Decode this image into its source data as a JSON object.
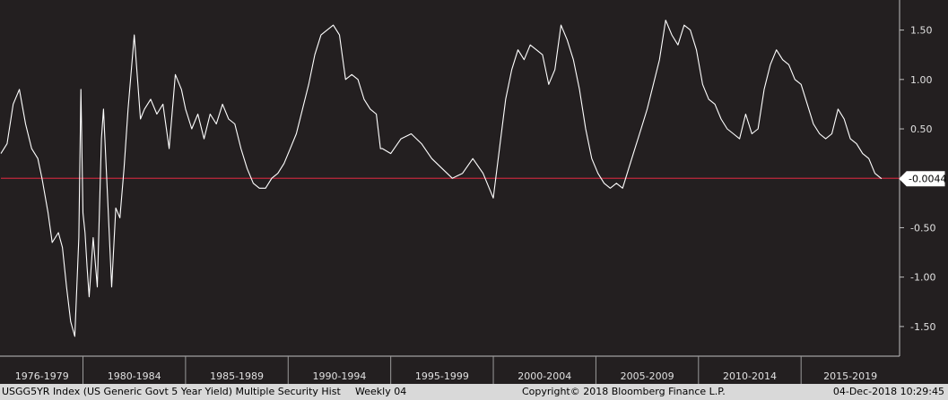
{
  "chart_data": {
    "type": "line",
    "title": "",
    "xlabel": "",
    "ylabel": "",
    "ylim": [
      -1.8,
      1.75
    ],
    "yticks": [
      "1.50",
      "1.00",
      "0.50",
      "-0.50",
      "-1.00",
      "-1.50"
    ],
    "ytick_values": [
      1.5,
      1.0,
      0.5,
      -0.5,
      -1.0,
      -1.5
    ],
    "xticks": [
      "1976-1979",
      "1980-1984",
      "1985-1989",
      "1990-1994",
      "1995-1999",
      "2000-2004",
      "2005-2009",
      "2010-2014",
      "2015-2019"
    ],
    "xrange": [
      1976.0,
      2019.8
    ],
    "reference_line": {
      "value": 0,
      "color": "#c0283d"
    },
    "last_value": {
      "value": -0.0044,
      "label": "-0.0044"
    },
    "grid": false,
    "line_color": "#ffffff",
    "background": "#231f20",
    "series": [
      {
        "x": [
          1976.0,
          1976.3,
          1976.6,
          1976.9,
          1977.2,
          1977.5,
          1977.8,
          1978.0,
          1978.3,
          1978.5,
          1978.8,
          1979.0,
          1979.2,
          1979.4,
          1979.6,
          1979.8,
          1979.9,
          1980.0,
          1980.1,
          1980.2,
          1980.3,
          1980.5,
          1980.7,
          1980.9,
          1981.0,
          1981.2,
          1981.4,
          1981.6,
          1981.8,
          1982.0,
          1982.2,
          1982.5,
          1982.8,
          1983.0,
          1983.3,
          1983.6,
          1983.9,
          1984.2,
          1984.5,
          1984.8,
          1985.0,
          1985.3,
          1985.6,
          1985.9,
          1986.2,
          1986.5,
          1986.8,
          1987.1,
          1987.4,
          1987.7,
          1988.0,
          1988.3,
          1988.6,
          1988.9,
          1989.2,
          1989.5,
          1989.8,
          1990.1,
          1990.4,
          1990.7,
          1991.0,
          1991.3,
          1991.6,
          1991.9,
          1992.2,
          1992.5,
          1992.8,
          1993.1,
          1993.4,
          1993.7,
          1994.0,
          1994.3,
          1994.5,
          1994.6,
          1995.0,
          1995.5,
          1996.0,
          1996.5,
          1997.0,
          1997.5,
          1998.0,
          1998.5,
          1999.0,
          1999.5,
          2000.0,
          2000.3,
          2000.6,
          2000.9,
          2001.2,
          2001.5,
          2001.8,
          2002.1,
          2002.4,
          2002.7,
          2003.0,
          2003.3,
          2003.6,
          2003.9,
          2004.2,
          2004.5,
          2004.8,
          2005.1,
          2005.4,
          2005.7,
          2006.0,
          2006.3,
          2006.6,
          2006.9,
          2007.2,
          2007.5,
          2007.8,
          2008.1,
          2008.4,
          2008.7,
          2009.0,
          2009.3,
          2009.6,
          2009.9,
          2010.2,
          2010.5,
          2010.8,
          2011.1,
          2011.4,
          2011.7,
          2012.0,
          2012.3,
          2012.6,
          2012.9,
          2013.2,
          2013.5,
          2013.8,
          2014.1,
          2014.4,
          2014.7,
          2015.0,
          2015.3,
          2015.6,
          2015.9,
          2016.2,
          2016.5,
          2016.8,
          2017.1,
          2017.4,
          2017.7,
          2018.0,
          2018.3,
          2018.6,
          2018.92
        ],
        "values": [
          0.25,
          0.35,
          0.75,
          0.9,
          0.55,
          0.3,
          0.2,
          0.0,
          -0.35,
          -0.65,
          -0.55,
          -0.7,
          -1.1,
          -1.45,
          -1.6,
          -0.6,
          0.9,
          -0.35,
          -0.55,
          -0.9,
          -1.2,
          -0.6,
          -1.1,
          0.4,
          0.7,
          -0.2,
          -1.1,
          -0.3,
          -0.4,
          0.1,
          0.7,
          1.45,
          0.6,
          0.7,
          0.8,
          0.65,
          0.75,
          0.3,
          1.05,
          0.9,
          0.7,
          0.5,
          0.65,
          0.4,
          0.65,
          0.55,
          0.75,
          0.6,
          0.55,
          0.3,
          0.1,
          -0.05,
          -0.1,
          -0.1,
          0.0,
          0.05,
          0.15,
          0.3,
          0.45,
          0.7,
          0.95,
          1.25,
          1.45,
          1.5,
          1.55,
          1.45,
          1.0,
          1.05,
          1.0,
          0.8,
          0.7,
          0.65,
          0.3,
          0.3,
          0.25,
          0.4,
          0.45,
          0.35,
          0.2,
          0.1,
          0.0,
          0.05,
          0.2,
          0.05,
          -0.2,
          0.3,
          0.8,
          1.1,
          1.3,
          1.2,
          1.35,
          1.3,
          1.25,
          0.95,
          1.1,
          1.55,
          1.4,
          1.2,
          0.9,
          0.5,
          0.2,
          0.05,
          -0.05,
          -0.1,
          -0.05,
          -0.1,
          0.1,
          0.3,
          0.5,
          0.7,
          0.95,
          1.2,
          1.6,
          1.45,
          1.35,
          1.55,
          1.5,
          1.3,
          0.95,
          0.8,
          0.75,
          0.6,
          0.5,
          0.45,
          0.4,
          0.65,
          0.45,
          0.5,
          0.9,
          1.15,
          1.3,
          1.2,
          1.15,
          1.0,
          0.95,
          0.75,
          0.55,
          0.45,
          0.4,
          0.45,
          0.7,
          0.6,
          0.4,
          0.35,
          0.25,
          0.2,
          0.05,
          -0.0044
        ]
      }
    ]
  },
  "footer": {
    "left": "USGG5YR Index (US Generic Govt 5 Year Yield) Multiple Security Hist",
    "frequency": "Weekly 04",
    "copyright": "Copyright© 2018 Bloomberg Finance L.P.",
    "timestamp": "04-Dec-2018 10:29:45"
  }
}
